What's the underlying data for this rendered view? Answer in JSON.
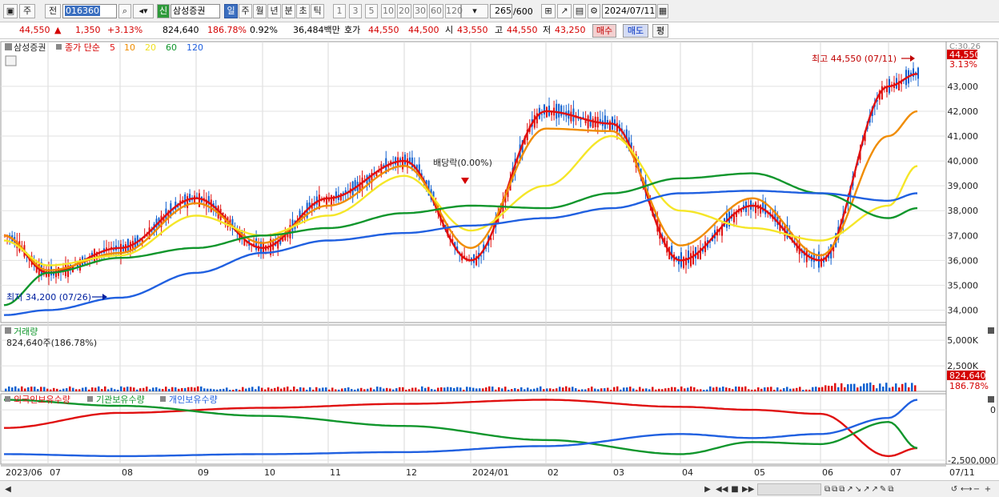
{
  "toolbar": {
    "type_label": "주",
    "prev_label": "전",
    "code": "016360",
    "badge": "신",
    "stock_name": "삼성증권",
    "periods": [
      "일",
      "주",
      "월",
      "년",
      "분",
      "초",
      "틱"
    ],
    "intervals": [
      "1",
      "3",
      "5",
      "10",
      "20",
      "30",
      "60",
      "120"
    ],
    "count": "265",
    "count_max": "/600",
    "date": "2024/07/11"
  },
  "quote": {
    "price": "44,550",
    "change": "1,350",
    "change_pct": "+3.13%",
    "volume": "824,640",
    "volume_ratio": "186.78%",
    "turnover": "0.92%",
    "amount": "36,484백만",
    "hoga_label": "호가",
    "hoga_ask": "44,550",
    "hoga_bid": "44,500",
    "open_label": "시",
    "open": "43,550",
    "high_label": "고",
    "high": "44,550",
    "low_label": "저",
    "low": "43,250",
    "buy_label": "매수",
    "sell_label": "매도",
    "eval_label": "평"
  },
  "price_panel": {
    "name": "삼성증권",
    "legend_prefix": "종가 단순",
    "ma_legend": [
      {
        "label": "5",
        "color": "#e01010"
      },
      {
        "label": "10",
        "color": "#f08c00"
      },
      {
        "label": "20",
        "color": "#f0e020"
      },
      {
        "label": "60",
        "color": "#10962c"
      },
      {
        "label": "120",
        "color": "#2060e0"
      }
    ],
    "high_annotation": "최고 44,550 (07/11)",
    "low_annotation": "최저 34,200 (07/26)",
    "exdiv_annotation": "배당락(0.00%)",
    "axis_ticks": [
      "34,000",
      "35,000",
      "36,000",
      "37,000",
      "38,000",
      "39,000",
      "40,000",
      "41,000",
      "42,000",
      "43,000"
    ],
    "axis_top_partial": "C:30.26",
    "price_tag": "44,550",
    "pct_tag": "3.13%"
  },
  "volume_panel": {
    "name": "거래량",
    "current": "824,640주(186.78%)",
    "axis_ticks": [
      "2,500K",
      "5,000K"
    ],
    "tag_value": "824,640",
    "tag_pct": "186.78%"
  },
  "holding_panel": {
    "legend": [
      {
        "label": "외국인보유수량",
        "color": "#e01010"
      },
      {
        "label": "기관보유수량",
        "color": "#10962c"
      },
      {
        "label": "개인보유수량",
        "color": "#2060e0"
      }
    ],
    "axis_ticks": [
      "-2,500,000",
      "0"
    ]
  },
  "x_axis": {
    "labels": [
      "2023/06",
      "07",
      "08",
      "09",
      "10",
      "11",
      "12",
      "2024/01",
      "02",
      "03",
      "04",
      "05",
      "06",
      "07"
    ],
    "end_label": "07/11"
  },
  "chart_data": {
    "type": "line",
    "series": [
      {
        "name": "5",
        "x": [
          "2023/06",
          "2023/07",
          "2023/08",
          "2023/09",
          "2023/10",
          "2023/11",
          "2023/12",
          "2024/01",
          "2024/02",
          "2024/03",
          "2024/04",
          "2024/05",
          "2024/06",
          "2024/07",
          "2024/07/11"
        ],
        "values": [
          37000,
          35500,
          36500,
          38500,
          36500,
          38500,
          40000,
          36000,
          42000,
          41500,
          36000,
          38200,
          36000,
          43000,
          43500
        ]
      },
      {
        "name": "10",
        "x": [
          "2023/06",
          "2023/07",
          "2023/08",
          "2023/09",
          "2023/10",
          "2023/11",
          "2023/12",
          "2024/01",
          "2024/02",
          "2024/03",
          "2024/04",
          "2024/05",
          "2024/06",
          "2024/07",
          "2024/07/11"
        ],
        "values": [
          37000,
          35600,
          36300,
          38300,
          36700,
          38200,
          39800,
          36500,
          41300,
          41200,
          36600,
          38500,
          36200,
          41000,
          42000
        ]
      },
      {
        "name": "20",
        "x": [
          "2023/06",
          "2023/07",
          "2023/08",
          "2023/09",
          "2023/10",
          "2023/11",
          "2023/12",
          "2024/01",
          "2024/02",
          "2024/03",
          "2024/04",
          "2024/05",
          "2024/06",
          "2024/07",
          "2024/07/11"
        ],
        "values": [
          36800,
          35800,
          36200,
          37800,
          37000,
          37800,
          39400,
          37200,
          39000,
          41000,
          38000,
          37300,
          36800,
          38200,
          39800
        ]
      },
      {
        "name": "60",
        "x": [
          "2023/06",
          "2023/07",
          "2023/08",
          "2023/09",
          "2023/10",
          "2023/11",
          "2023/12",
          "2024/01",
          "2024/02",
          "2024/03",
          "2024/04",
          "2024/05",
          "2024/06",
          "2024/07",
          "2024/07/11"
        ],
        "values": [
          34200,
          35500,
          36100,
          36500,
          37000,
          37300,
          37900,
          38200,
          38100,
          38700,
          39300,
          39500,
          38700,
          37700,
          38100
        ]
      },
      {
        "name": "120",
        "x": [
          "2023/06",
          "2023/07",
          "2023/08",
          "2023/09",
          "2023/10",
          "2023/11",
          "2023/12",
          "2024/01",
          "2024/02",
          "2024/03",
          "2024/04",
          "2024/05",
          "2024/06",
          "2024/07",
          "2024/07/11"
        ],
        "values": [
          33800,
          34000,
          34500,
          35500,
          36300,
          36800,
          37100,
          37400,
          37700,
          38100,
          38700,
          38800,
          38700,
          38400,
          38700
        ]
      }
    ],
    "price_ylim": [
      33500,
      44800
    ],
    "holdings": [
      {
        "name": "외국인보유수량",
        "x": [
          "2023/06",
          "2023/08",
          "2023/10",
          "2023/12",
          "2024/02",
          "2024/04",
          "2024/05",
          "2024/06",
          "2024/07",
          "2024/07/11"
        ],
        "values": [
          -900000,
          -150000,
          100000,
          300000,
          500000,
          150000,
          0,
          -200000,
          -2300000,
          -1900000
        ]
      },
      {
        "name": "기관보유수량",
        "x": [
          "2023/06",
          "2023/08",
          "2023/10",
          "2023/12",
          "2024/02",
          "2024/04",
          "2024/05",
          "2024/06",
          "2024/07",
          "2024/07/11"
        ],
        "values": [
          500000,
          200000,
          -300000,
          -800000,
          -1500000,
          -2200000,
          -1600000,
          -1700000,
          -600000,
          -1900000
        ]
      },
      {
        "name": "개인보유수량",
        "x": [
          "2023/06",
          "2023/08",
          "2023/10",
          "2023/12",
          "2024/02",
          "2024/04",
          "2024/05",
          "2024/06",
          "2024/07",
          "2024/07/11"
        ],
        "values": [
          -2200000,
          -2300000,
          -2200000,
          -2100000,
          -1800000,
          -1200000,
          -1400000,
          -1200000,
          -400000,
          500000
        ]
      }
    ],
    "holdings_ylim": [
      -2700000,
      800000
    ],
    "volume_ylim": [
      0,
      6500000
    ]
  }
}
